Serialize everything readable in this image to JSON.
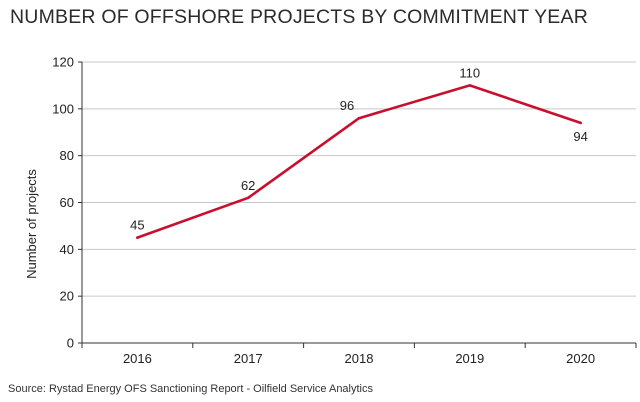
{
  "title": "NUMBER OF OFFSHORE PROJECTS BY COMMITMENT YEAR",
  "source": "Source: Rystad Energy OFS Sanctioning Report - Oilfield Service Analytics",
  "chart_data": {
    "type": "line",
    "title": "NUMBER OF OFFSHORE PROJECTS BY COMMITMENT YEAR",
    "xlabel": "",
    "ylabel": "Number of projects",
    "categories": [
      "2016",
      "2017",
      "2018",
      "2019",
      "2020"
    ],
    "values": [
      45,
      62,
      96,
      110,
      94
    ],
    "data_labels": [
      "45",
      "62",
      "96",
      "110",
      "94"
    ],
    "ylim": [
      0,
      120
    ],
    "yticks": [
      0,
      20,
      40,
      60,
      80,
      100,
      120
    ],
    "ytick_labels": [
      "0",
      "20",
      "40",
      "60",
      "80",
      "100",
      "120"
    ],
    "grid": true,
    "legend": "none",
    "colors": {
      "line": "#c8102e",
      "grid": "#c8c8c8",
      "axis": "#333333"
    }
  }
}
